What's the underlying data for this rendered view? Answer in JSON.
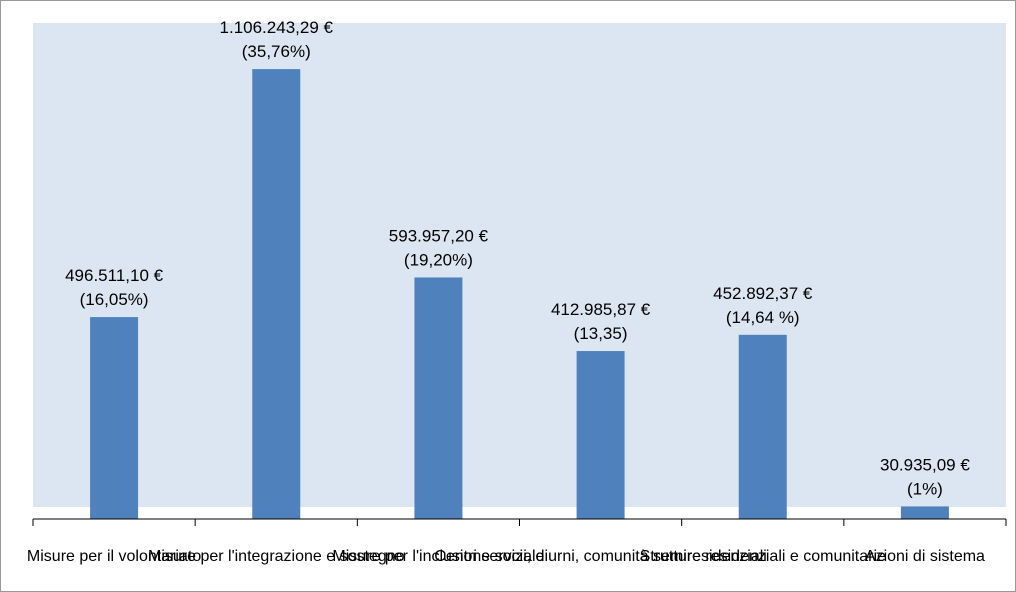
{
  "chart_data": {
    "type": "bar",
    "categories": [
      "Misure per il volontariato",
      "Misure per l'integrazione e sostegno",
      "Misure per l'inclusione sociale",
      "Centri servizi, diurni, comunità semiresidenziali",
      "Strutture residenziali e comunitarie",
      "Azioni di sistema"
    ],
    "values": [
      496511.1,
      1106243.29,
      593957.2,
      412985.87,
      452892.37,
      30935.09
    ],
    "value_labels": [
      "496.511,10 €",
      "1.106.243,29 €",
      "593.957,20 €",
      "412.985,87 €",
      "452.892,37 €",
      "30.935,09 €"
    ],
    "percent_labels": [
      "(16,05%)",
      "(35,76%)",
      "(19,20%)",
      "(13,35)",
      "(14,64 %)",
      "(1%)"
    ],
    "title": "",
    "xlabel": "",
    "ylabel": "",
    "ylim": [
      0,
      1200000
    ],
    "grid": false,
    "legend": "none",
    "colors": {
      "bar": "#4f81bd",
      "plot_background": "#dce6f2",
      "axis": "#000000",
      "frame_border": "#9a9a9a"
    }
  }
}
